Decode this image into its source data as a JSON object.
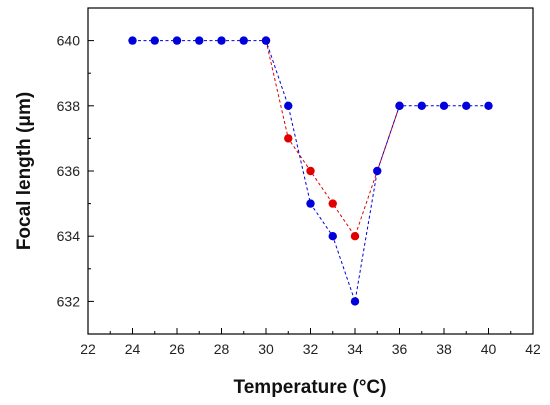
{
  "chart_data": {
    "type": "scatter",
    "xlabel": "Temperature (°C)",
    "ylabel": "Focal length (μm)",
    "xlim": [
      22,
      42
    ],
    "ylim": [
      631,
      641
    ],
    "xticks": [
      22,
      24,
      26,
      28,
      30,
      32,
      34,
      36,
      38,
      40,
      42
    ],
    "yticks": [
      632,
      634,
      636,
      638,
      640
    ],
    "grid": false,
    "legend": "none",
    "series": [
      {
        "color": "#0000dd",
        "style": "dashed-line-with-markers",
        "x": [
          24,
          25,
          26,
          27,
          28,
          29,
          30,
          31,
          32,
          33,
          34,
          35,
          36,
          37,
          38,
          39,
          40
        ],
        "y": [
          640,
          640,
          640,
          640,
          640,
          640,
          640,
          638,
          635,
          634,
          632,
          636,
          638,
          638,
          638,
          638,
          638
        ]
      },
      {
        "color": "#e00000",
        "style": "dashed-line-with-markers",
        "x": [
          30,
          31,
          32,
          33,
          34,
          36
        ],
        "y": [
          640,
          637,
          636,
          635,
          634,
          638
        ]
      }
    ]
  }
}
